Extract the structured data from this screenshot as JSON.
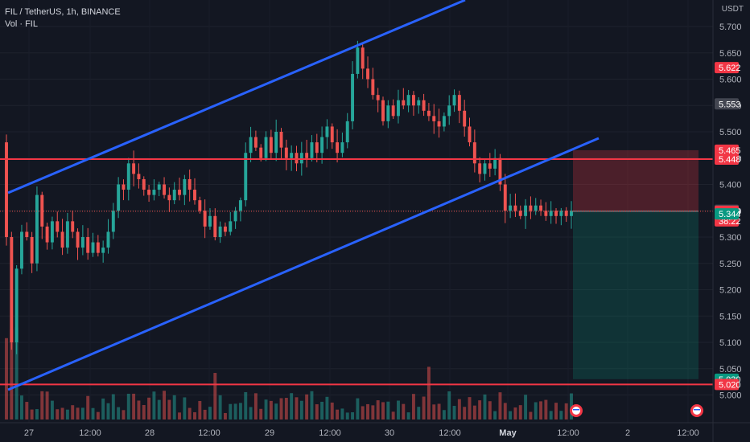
{
  "header": {
    "symbol": "FIL / TetherUS",
    "interval": "1h",
    "exchange": "BINANCE",
    "volume_label": "Vol · FIL",
    "currency": "USDT",
    "separator": ", "
  },
  "colors": {
    "background": "#131722",
    "up": "#26a69a",
    "down": "#ef5350",
    "channel_line": "#2962ff",
    "level_line": "#f23645",
    "stop_zone": "rgba(242,54,69,0.25)",
    "target_zone": "rgba(8,153,129,0.22)"
  },
  "chart_data": {
    "type": "candlestick",
    "y_axis": {
      "range": [
        4.98,
        5.76
      ],
      "ticks": [
        "5.700",
        "5.650",
        "5.600",
        "5.550",
        "5.500",
        "5.450",
        "5.400",
        "5.350",
        "5.300",
        "5.250",
        "5.200",
        "5.150",
        "5.100",
        "5.050",
        "5.000"
      ]
    },
    "x_axis": {
      "ticks": [
        {
          "label": "27",
          "bold": false
        },
        {
          "label": "12:00",
          "bold": false
        },
        {
          "label": "28",
          "bold": false
        },
        {
          "label": "12:00",
          "bold": false
        },
        {
          "label": "29",
          "bold": false
        },
        {
          "label": "12:00",
          "bold": false
        },
        {
          "label": "30",
          "bold": false
        },
        {
          "label": "12:00",
          "bold": false
        },
        {
          "label": "May",
          "bold": true
        },
        {
          "label": "12:00",
          "bold": false
        },
        {
          "label": "2",
          "bold": false
        },
        {
          "label": "12:00",
          "bold": false
        }
      ]
    },
    "price_badges": [
      {
        "value": "5.622",
        "kind": "red"
      },
      {
        "value": "5.553",
        "kind": "gray"
      },
      {
        "value": "5.465",
        "kind": "red"
      },
      {
        "value": "5.448",
        "kind": "red"
      },
      {
        "value": "5.351",
        "kind": "gray"
      },
      {
        "value": "5.349",
        "kind": "red",
        "sub": "38:22"
      },
      {
        "value": "5.344",
        "kind": "green"
      },
      {
        "value": "5.030",
        "kind": "green"
      },
      {
        "value": "5.020",
        "kind": "red"
      }
    ],
    "horizontal_levels": [
      5.448,
      5.02
    ],
    "current_price": 5.349,
    "trend_channel": {
      "upper": [
        {
          "x": "2023-04-26 22:00",
          "y": 5.42
        },
        {
          "x": "2023-04-30 14:00",
          "y": 5.83
        }
      ],
      "lower": [
        {
          "x": "2023-04-26 22:00",
          "y": 5.02
        },
        {
          "x": "2023-05-01 20:00",
          "y": 5.49
        }
      ]
    },
    "position": {
      "type": "short",
      "entry": 5.349,
      "stop": 5.465,
      "target": 5.03
    },
    "candle_pattern": [
      [
        5.48,
        5.3
      ],
      [
        5.3,
        5.1
      ],
      [
        5.1,
        5.24
      ],
      [
        5.24,
        5.31
      ],
      [
        5.31,
        5.3
      ],
      [
        5.3,
        5.25
      ],
      [
        5.25,
        5.38
      ],
      [
        5.38,
        5.32
      ],
      [
        5.32,
        5.29
      ],
      [
        5.29,
        5.33
      ],
      [
        5.33,
        5.31
      ],
      [
        5.31,
        5.28
      ],
      [
        5.28,
        5.33
      ],
      [
        5.33,
        5.31
      ],
      [
        5.31,
        5.28
      ],
      [
        5.28,
        5.3
      ],
      [
        5.3,
        5.27
      ],
      [
        5.27,
        5.29
      ],
      [
        5.29,
        5.27
      ],
      [
        5.27,
        5.28
      ],
      [
        5.28,
        5.31
      ],
      [
        5.31,
        5.35
      ],
      [
        5.35,
        5.4
      ],
      [
        5.4,
        5.39
      ],
      [
        5.39,
        5.44
      ],
      [
        5.44,
        5.42
      ],
      [
        5.42,
        5.41
      ],
      [
        5.41,
        5.39
      ],
      [
        5.39,
        5.38
      ],
      [
        5.38,
        5.39
      ],
      [
        5.39,
        5.4
      ],
      [
        5.4,
        5.38
      ],
      [
        5.38,
        5.37
      ],
      [
        5.37,
        5.39
      ],
      [
        5.39,
        5.38
      ],
      [
        5.38,
        5.41
      ],
      [
        5.41,
        5.39
      ],
      [
        5.39,
        5.37
      ],
      [
        5.37,
        5.35
      ],
      [
        5.35,
        5.32
      ],
      [
        5.32,
        5.34
      ],
      [
        5.34,
        5.3
      ],
      [
        5.3,
        5.32
      ],
      [
        5.32,
        5.31
      ],
      [
        5.31,
        5.33
      ],
      [
        5.33,
        5.35
      ],
      [
        5.35,
        5.37
      ],
      [
        5.37,
        5.46
      ],
      [
        5.46,
        5.49
      ],
      [
        5.49,
        5.47
      ],
      [
        5.47,
        5.45
      ],
      [
        5.45,
        5.49
      ],
      [
        5.49,
        5.46
      ],
      [
        5.46,
        5.5
      ],
      [
        5.5,
        5.47
      ],
      [
        5.47,
        5.45
      ],
      [
        5.45,
        5.46
      ],
      [
        5.46,
        5.44
      ],
      [
        5.44,
        5.46
      ],
      [
        5.46,
        5.45
      ],
      [
        5.45,
        5.48
      ],
      [
        5.48,
        5.46
      ],
      [
        5.46,
        5.49
      ],
      [
        5.49,
        5.51
      ],
      [
        5.51,
        5.48
      ],
      [
        5.48,
        5.46
      ],
      [
        5.46,
        5.48
      ],
      [
        5.48,
        5.52
      ],
      [
        5.52,
        5.61
      ],
      [
        5.61,
        5.66
      ],
      [
        5.66,
        5.62
      ],
      [
        5.62,
        5.6
      ],
      [
        5.6,
        5.57
      ],
      [
        5.57,
        5.56
      ],
      [
        5.56,
        5.52
      ],
      [
        5.52,
        5.55
      ],
      [
        5.55,
        5.53
      ],
      [
        5.53,
        5.56
      ],
      [
        5.56,
        5.55
      ],
      [
        5.55,
        5.57
      ],
      [
        5.57,
        5.55
      ],
      [
        5.55,
        5.56
      ],
      [
        5.56,
        5.54
      ],
      [
        5.54,
        5.53
      ],
      [
        5.53,
        5.52
      ],
      [
        5.52,
        5.51
      ],
      [
        5.51,
        5.53
      ],
      [
        5.53,
        5.55
      ],
      [
        5.55,
        5.57
      ],
      [
        5.57,
        5.54
      ],
      [
        5.54,
        5.51
      ],
      [
        5.51,
        5.48
      ],
      [
        5.48,
        5.44
      ],
      [
        5.44,
        5.42
      ],
      [
        5.42,
        5.44
      ],
      [
        5.44,
        5.43
      ],
      [
        5.43,
        5.45
      ],
      [
        5.45,
        5.4
      ],
      [
        5.4,
        5.35
      ],
      [
        5.35,
        5.36
      ],
      [
        5.36,
        5.35
      ],
      [
        5.35,
        5.34
      ],
      [
        5.34,
        5.36
      ],
      [
        5.36,
        5.35
      ],
      [
        5.35,
        5.36
      ],
      [
        5.36,
        5.35
      ],
      [
        5.35,
        5.34
      ],
      [
        5.34,
        5.35
      ],
      [
        5.35,
        5.34
      ],
      [
        5.34,
        5.35
      ],
      [
        5.35,
        5.34
      ],
      [
        5.34,
        5.35
      ]
    ]
  }
}
